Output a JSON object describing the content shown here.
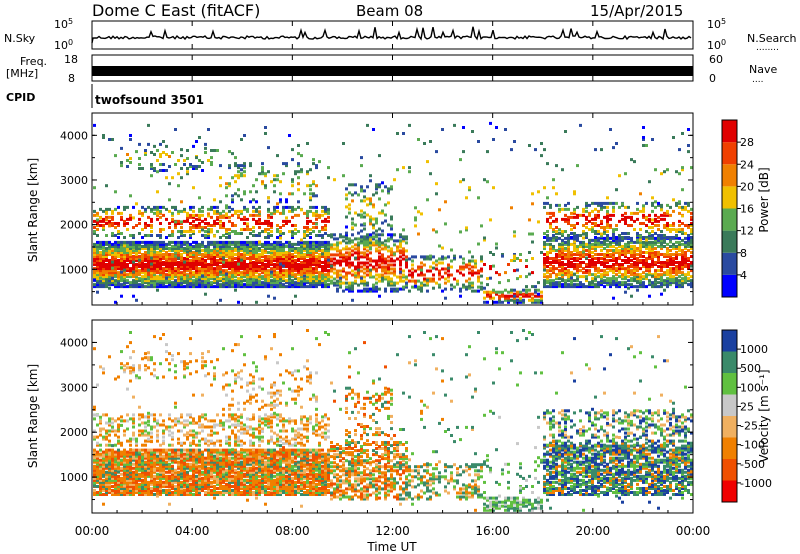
{
  "header": {
    "station": "Dome C East (fitACF)",
    "beam": "Beam 08",
    "date": "15/Apr/2015"
  },
  "aux": {
    "nsky_label": "N.Sky",
    "nsky_ticks": [
      "10^5",
      "10^0"
    ],
    "nsearch_label": "N.Search",
    "nsearch_ticks": [
      "10^5",
      "10^0"
    ],
    "freq_label_1": "Freq.",
    "freq_label_2": "[MHz]",
    "freq_ticks": [
      "18",
      "8"
    ],
    "nave_label": "Nave",
    "nave_ticks": [
      "60",
      "0"
    ],
    "cpid_label": "CPID",
    "cpid_value": "twofsound 3501"
  },
  "colors": {
    "power": [
      "#0000ff",
      "#2a4aa0",
      "#3a7a5a",
      "#5aaa50",
      "#f0c000",
      "#f08000",
      "#f04000",
      "#e00000"
    ],
    "velocity": [
      "#f00000",
      "#f05000",
      "#f08000",
      "#f0b060",
      "#c8c8c8",
      "#60c040",
      "#3a8a6a",
      "#1a40a0"
    ]
  },
  "chart_data": [
    {
      "type": "heatmap",
      "name": "power",
      "ylabel": "Slant Range [km]",
      "yticks": [
        "1000",
        "2000",
        "3000",
        "4000"
      ],
      "ylim": [
        200,
        4500
      ],
      "xlim": [
        0,
        24
      ],
      "xticks": [
        "00:00",
        "04:00",
        "08:00",
        "12:00",
        "16:00",
        "20:00",
        "00:00"
      ],
      "colorbar": {
        "label": "Power [dB]",
        "ticks": [
          "4",
          "8",
          "12",
          "16",
          "20",
          "24",
          "28"
        ],
        "range": [
          0,
          32
        ]
      }
    },
    {
      "type": "heatmap",
      "name": "velocity",
      "ylabel": "Slant Range [km]",
      "yticks": [
        "1000",
        "2000",
        "3000",
        "4000"
      ],
      "ylim": [
        200,
        4500
      ],
      "xlim": [
        0,
        24
      ],
      "xticks": [
        "00:00",
        "04:00",
        "08:00",
        "12:00",
        "16:00",
        "20:00",
        "00:00"
      ],
      "xlabel": "Time UT",
      "colorbar": {
        "label": "Velocity [m s⁻¹]",
        "ticks": [
          "1000",
          "500",
          "100",
          "25",
          "-25",
          "-100",
          "-500",
          "-1000"
        ]
      }
    }
  ]
}
